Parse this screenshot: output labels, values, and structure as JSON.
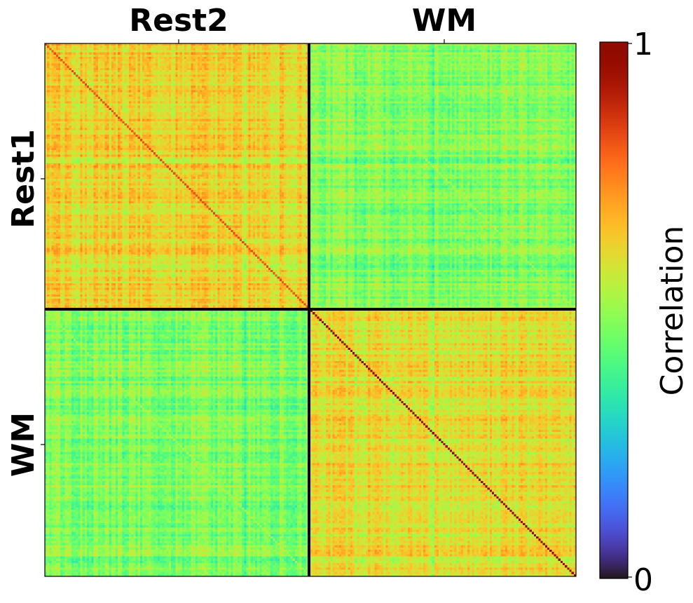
{
  "chart_data": {
    "type": "heatmap",
    "title": "",
    "column_blocks": [
      "Rest2",
      "WM"
    ],
    "row_blocks": [
      "Rest1",
      "WM"
    ],
    "n_per_block": 120,
    "colorscale": "turbo",
    "vmin": 0,
    "vmax": 1,
    "block_means": {
      "rest1_rest2": 0.62,
      "rest1_wm": 0.47,
      "wm_rest2": 0.47,
      "wm_wm": 0.6
    },
    "diagonal_values": {
      "rest1_rest2": 0.82,
      "rest1_wm": 0.52,
      "wm_rest2": 0.52,
      "wm_wm": 1.0
    },
    "block_separators": "black",
    "colorbar": {
      "label": "Correlation",
      "ticks": [
        "0",
        "1"
      ]
    }
  }
}
